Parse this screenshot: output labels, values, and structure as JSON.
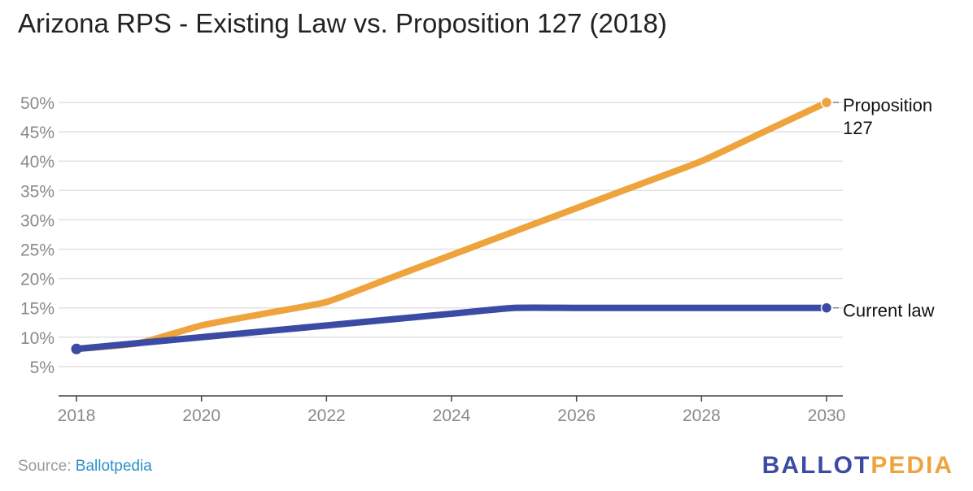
{
  "chart_data": {
    "type": "line",
    "title": "Arizona RPS - Existing Law vs. Proposition 127 (2018)",
    "x_ticks": [
      "2018",
      "2020",
      "2022",
      "2024",
      "2026",
      "2028",
      "2030"
    ],
    "y_ticks": [
      "5%",
      "10%",
      "15%",
      "20%",
      "25%",
      "30%",
      "35%",
      "40%",
      "45%",
      "50%"
    ],
    "xlim": [
      2018,
      2030
    ],
    "ylim": [
      0,
      50
    ],
    "grid": true,
    "series": [
      {
        "name": "Proposition 127",
        "label_lines": [
          "Proposition",
          "127"
        ],
        "color": "#eea33d",
        "points": [
          [
            2018,
            8
          ],
          [
            2019,
            9
          ],
          [
            2020,
            12
          ],
          [
            2021,
            14
          ],
          [
            2022,
            16
          ],
          [
            2023,
            20
          ],
          [
            2024,
            24
          ],
          [
            2025,
            28
          ],
          [
            2026,
            32
          ],
          [
            2027,
            36
          ],
          [
            2028,
            40
          ],
          [
            2029,
            45
          ],
          [
            2030,
            50
          ]
        ]
      },
      {
        "name": "Current law",
        "label_lines": [
          "Current law"
        ],
        "color": "#3b4ba3",
        "points": [
          [
            2018,
            8
          ],
          [
            2019,
            9
          ],
          [
            2020,
            10
          ],
          [
            2021,
            11
          ],
          [
            2022,
            12
          ],
          [
            2023,
            13
          ],
          [
            2024,
            14
          ],
          [
            2025,
            15
          ],
          [
            2026,
            15
          ],
          [
            2027,
            15
          ],
          [
            2028,
            15
          ],
          [
            2029,
            15
          ],
          [
            2030,
            15
          ]
        ]
      }
    ]
  },
  "footer": {
    "source_prefix": "Source: ",
    "source_name": "Ballotpedia",
    "brand_part1": "BALLOT",
    "brand_part2": "PEDIA"
  }
}
